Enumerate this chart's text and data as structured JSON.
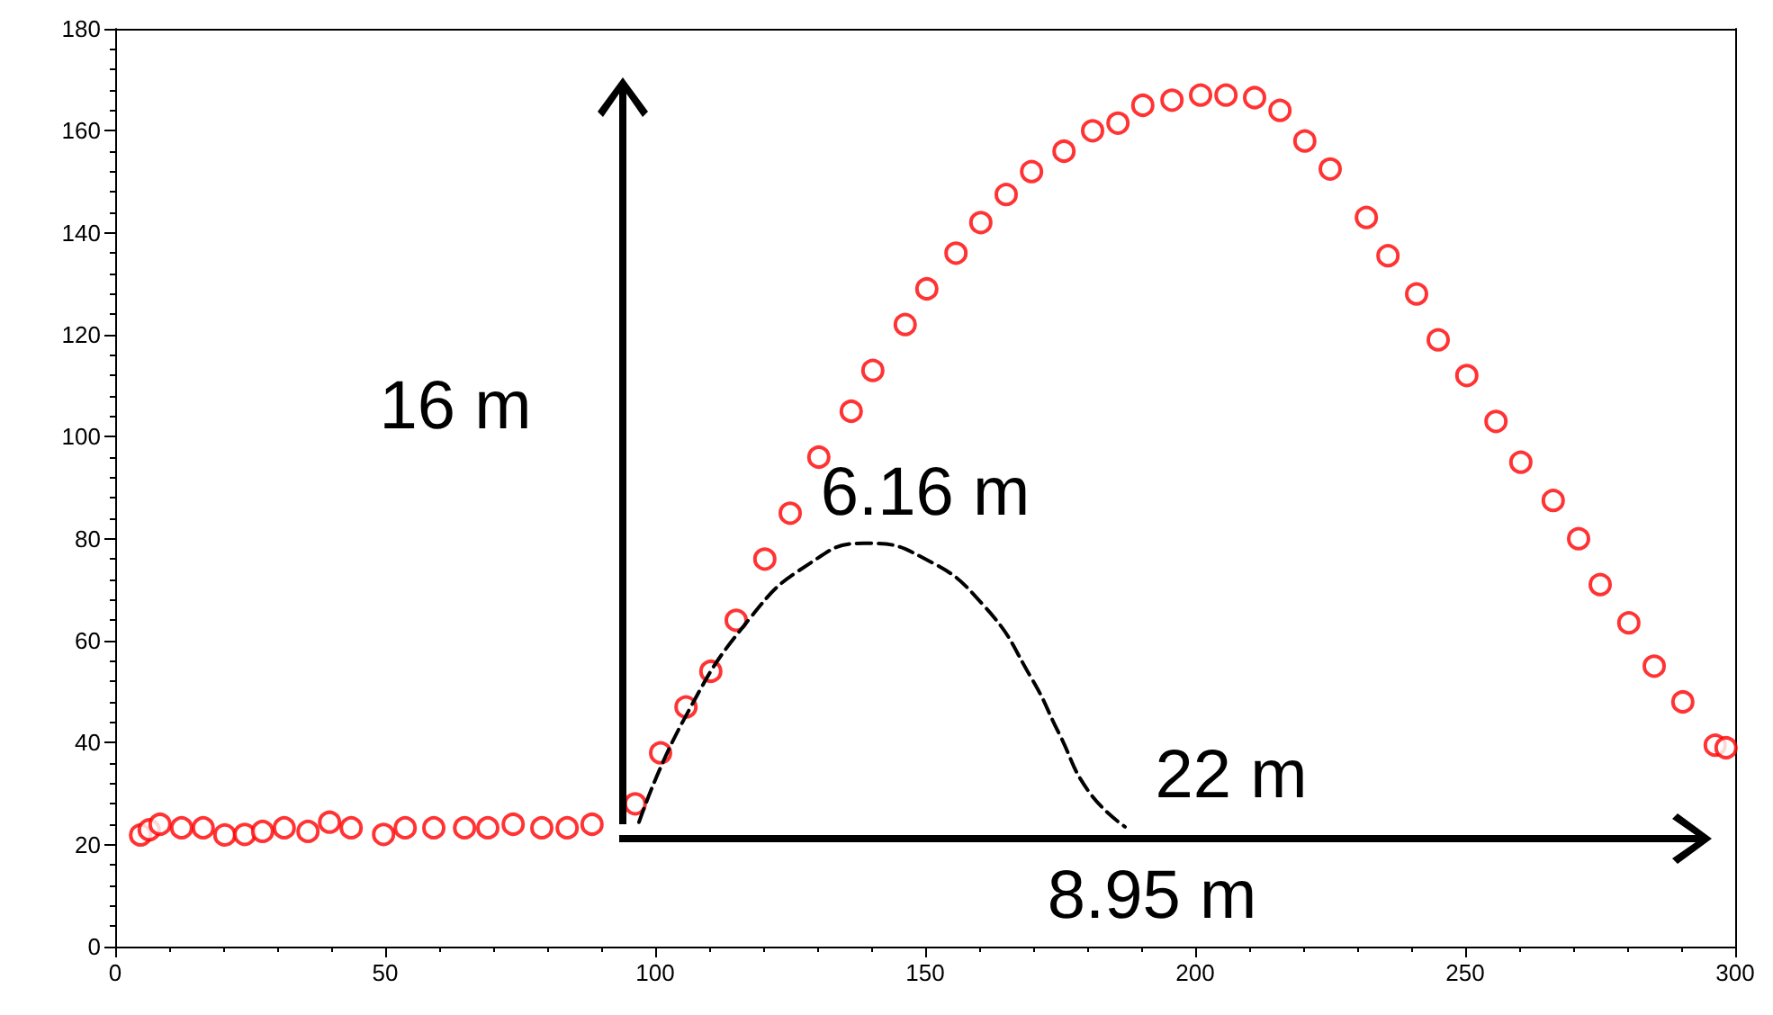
{
  "chart_data": {
    "type": "scatter",
    "xlim": [
      0,
      300
    ],
    "xticks": [
      0,
      50,
      100,
      150,
      200,
      250,
      300
    ],
    "ylim": [
      0,
      180
    ],
    "yticks": [
      0,
      20,
      40,
      60,
      80,
      100,
      120,
      140,
      160,
      180
    ],
    "grid": false,
    "annotations": [
      "16 m",
      "6.16 m",
      "22 m",
      "8.95 m"
    ],
    "series": [
      {
        "color": "#ff0000",
        "marker": "circle",
        "x": [
          4.7,
          6.3,
          8.3,
          12.3,
          16.3,
          20.3,
          24,
          27.3,
          31.3,
          35.7,
          39.7,
          43.7,
          49.7,
          53.7,
          59,
          64.7,
          69,
          73.7,
          79,
          83.7,
          88.3,
          96.3,
          101,
          105.7,
          110.3,
          115,
          120.3,
          125,
          130.3,
          136.3,
          140.3,
          146.3,
          150.3,
          155.7,
          160.3,
          165,
          169.7,
          175.7,
          181,
          185.7,
          190.3,
          195.7,
          201,
          205.7,
          211,
          215.7,
          220.3,
          225,
          231.7,
          235.7,
          241,
          245,
          250.3,
          255.7,
          260.3,
          266.3,
          271,
          275,
          280.3,
          285,
          290.3,
          296.3,
          298.3
        ],
        "values": [
          21.9,
          22.9,
          24,
          23.3,
          23.3,
          21.9,
          22,
          22.6,
          23.3,
          22.6,
          24.4,
          23.3,
          22,
          23.3,
          23.3,
          23.3,
          23.3,
          24,
          23.3,
          23.3,
          24,
          28,
          38,
          47,
          54,
          64,
          76,
          85,
          96,
          105,
          113,
          122,
          129,
          136,
          142,
          147.5,
          152,
          156,
          160,
          161.5,
          165,
          166,
          167,
          167,
          166.5,
          164,
          158,
          152.5,
          143,
          135.5,
          128,
          119,
          112,
          103,
          95,
          87.5,
          80,
          71,
          63.5,
          55,
          48,
          39.5,
          39
        ]
      },
      {
        "type": "line",
        "color": "#000000",
        "marker": "none",
        "line_style": "dashed",
        "x": [
          97,
          105.3,
          117.7,
          128.7,
          138.7,
          149.7,
          161,
          169.7,
          174.7,
          180.3,
          187
        ],
        "values": [
          24.4,
          44.5,
          64.6,
          75.2,
          79.1,
          76.2,
          66.7,
          52.6,
          42,
          30.4,
          23.5
        ]
      }
    ]
  }
}
